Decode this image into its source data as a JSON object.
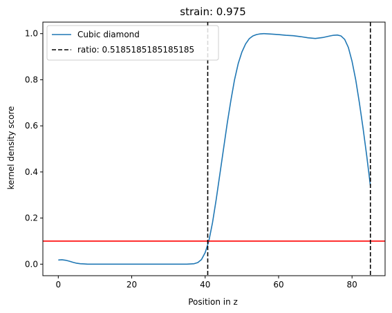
{
  "chart_data": {
    "type": "line",
    "title": "strain: 0.975",
    "xlabel": "Position in z",
    "ylabel": "kernel density score",
    "xlim": [
      -4.2,
      89
    ],
    "ylim": [
      -0.05,
      1.05
    ],
    "xticks": [
      0,
      20,
      40,
      60,
      80
    ],
    "yticks": [
      0.0,
      0.2,
      0.4,
      0.6,
      0.8,
      1.0
    ],
    "xtick_labels": [
      "0",
      "20",
      "40",
      "60",
      "80"
    ],
    "ytick_labels": [
      "0.0",
      "0.2",
      "0.4",
      "0.6",
      "0.8",
      "1.0"
    ],
    "grid": false,
    "legend": {
      "location": "upper-left",
      "entries": [
        {
          "label": "Cubic diamond",
          "style": "solid",
          "color": "#1f77b4"
        },
        {
          "label": "ratio: 0.5185185185185185",
          "style": "dashed",
          "color": "#000000"
        }
      ]
    },
    "series": [
      {
        "name": "Cubic diamond",
        "color": "#1f77b4",
        "x": [
          0,
          1,
          2,
          3,
          4,
          5,
          6,
          7,
          8,
          10,
          15,
          20,
          25,
          30,
          35,
          37,
          38,
          39,
          40,
          41,
          42,
          43,
          44,
          45,
          46,
          47,
          48,
          49,
          50,
          51,
          52,
          53,
          54,
          55,
          56,
          58,
          60,
          62,
          64,
          66,
          68,
          70,
          72,
          74,
          75,
          76,
          77,
          78,
          79,
          80,
          81,
          82,
          83,
          84,
          85
        ],
        "y": [
          0.018,
          0.019,
          0.017,
          0.013,
          0.008,
          0.004,
          0.002,
          0.001,
          0.0,
          0.0,
          0.0,
          0.0,
          0.0,
          0.0,
          0.0,
          0.002,
          0.007,
          0.02,
          0.05,
          0.1,
          0.18,
          0.28,
          0.39,
          0.5,
          0.61,
          0.71,
          0.8,
          0.87,
          0.92,
          0.955,
          0.978,
          0.99,
          0.996,
          0.999,
          1.0,
          0.998,
          0.996,
          0.993,
          0.991,
          0.987,
          0.982,
          0.979,
          0.983,
          0.99,
          0.993,
          0.994,
          0.99,
          0.975,
          0.94,
          0.88,
          0.8,
          0.7,
          0.59,
          0.47,
          0.34
        ]
      }
    ],
    "vlines": [
      {
        "x": 40.7,
        "color": "#000000",
        "style": "dashed"
      },
      {
        "x": 85,
        "color": "#000000",
        "style": "dashed"
      }
    ],
    "hlines": [
      {
        "y": 0.1,
        "color": "#ff0000",
        "style": "solid"
      }
    ]
  }
}
